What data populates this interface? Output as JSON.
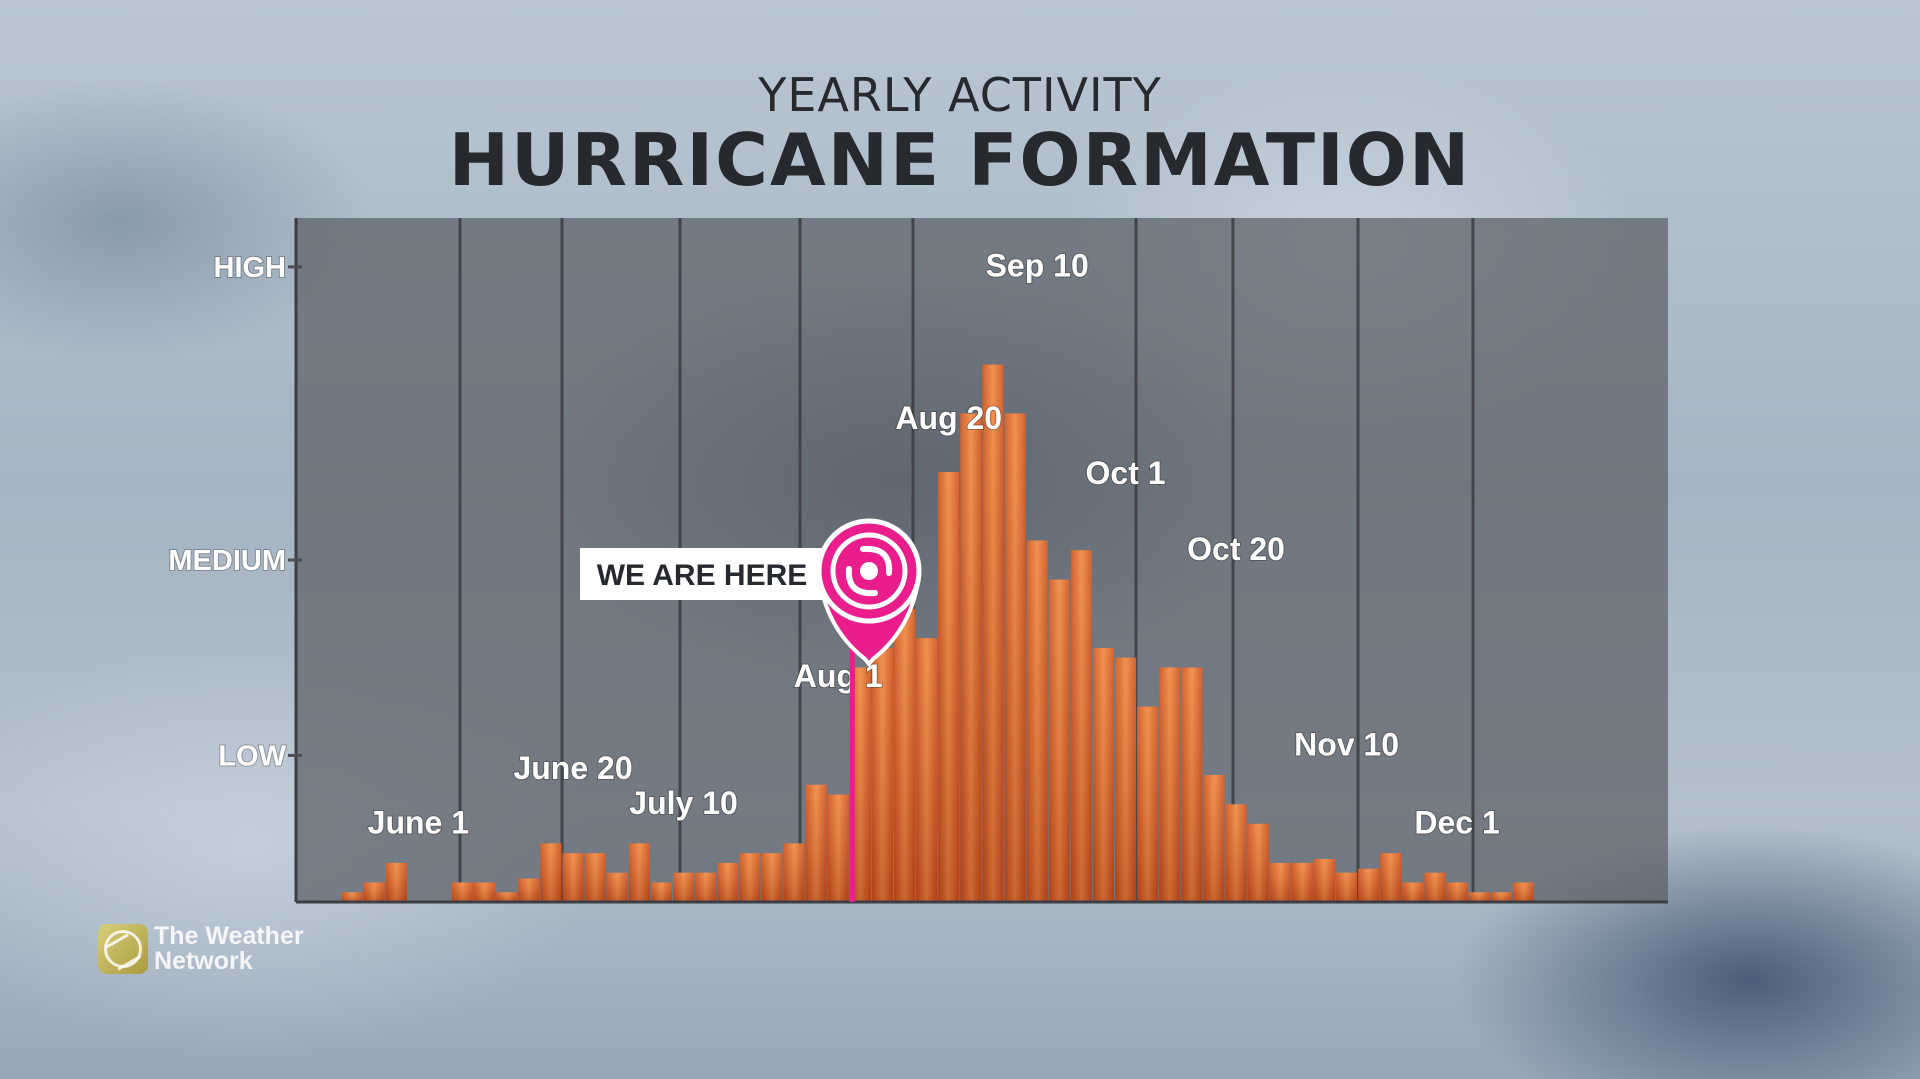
{
  "header": {
    "subtitle": "YEARLY ACTIVITY",
    "title": "HURRICANE FORMATION"
  },
  "marker": {
    "label": "WE ARE HERE",
    "icon": "hurricane-icon",
    "bar_index": 23,
    "color": "#e91e8c"
  },
  "logo": {
    "line1": "The Weather",
    "line2": "Network"
  },
  "colors": {
    "bar": "#e06a2a",
    "plot_bg": "#5c6066",
    "marker": "#e91e8c"
  },
  "chart_data": {
    "type": "bar",
    "y_tick_labels": [
      "HIGH",
      "MEDIUM",
      "LOW"
    ],
    "y_tick_values": [
      3.25,
      1.75,
      0.75
    ],
    "ylim": [
      0,
      3.5
    ],
    "values": [
      0.05,
      0.1,
      0.2,
      0.0,
      0.0,
      0.1,
      0.1,
      0.05,
      0.12,
      0.3,
      0.25,
      0.25,
      0.15,
      0.3,
      0.1,
      0.15,
      0.15,
      0.2,
      0.25,
      0.25,
      0.3,
      0.6,
      0.55,
      1.2,
      1.3,
      1.5,
      1.35,
      2.2,
      2.5,
      2.75,
      2.5,
      1.85,
      1.65,
      1.8,
      1.3,
      1.25,
      1.0,
      1.2,
      1.2,
      0.65,
      0.5,
      0.4,
      0.2,
      0.2,
      0.22,
      0.15,
      0.17,
      0.25,
      0.1,
      0.15,
      0.1,
      0.05,
      0.05,
      0.1
    ],
    "date_labels": [
      {
        "text": "June 1",
        "index": 3,
        "value": 0.35
      },
      {
        "text": "June 20",
        "index": 10,
        "value": 0.63
      },
      {
        "text": "July 10",
        "index": 15,
        "value": 0.45
      },
      {
        "text": "Aug 1",
        "index": 22,
        "value": 1.1
      },
      {
        "text": "Aug 20",
        "index": 27,
        "value": 2.42
      },
      {
        "text": "Sep 10",
        "index": 31,
        "value": 3.2
      },
      {
        "text": "Oct 1",
        "index": 35,
        "value": 2.14
      },
      {
        "text": "Oct 20",
        "index": 40,
        "value": 1.75
      },
      {
        "text": "Nov 10",
        "index": 45,
        "value": 0.75
      },
      {
        "text": "Dec 1",
        "index": 50,
        "value": 0.35
      }
    ],
    "grid": true,
    "legend": "none"
  }
}
